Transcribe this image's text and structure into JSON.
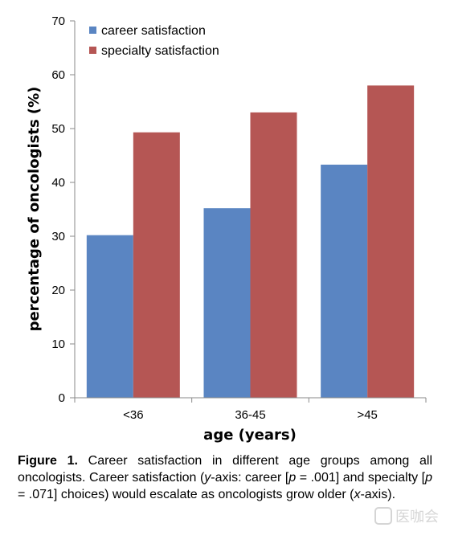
{
  "chart_data": {
    "type": "bar",
    "categories": [
      "<36",
      "36-45",
      ">45"
    ],
    "series": [
      {
        "name": "career satisfaction",
        "color": "#5a85c2",
        "values": [
          30.2,
          35.2,
          43.3
        ]
      },
      {
        "name": "specialty satisfaction",
        "color": "#b55654",
        "values": [
          49.3,
          53.0,
          58.0
        ]
      }
    ],
    "xlabel": "age (years)",
    "ylabel": "percentage of oncologists (%)",
    "ylim": [
      0,
      70
    ],
    "yticks": [
      0,
      10,
      20,
      30,
      40,
      50,
      60,
      70
    ],
    "grid": false,
    "legend_position": "top-left"
  },
  "caption": {
    "label": "Figure 1.",
    "part1": " Career satisfaction in different age groups among all oncologists. Career satisfaction (",
    "y_var": "y",
    "part2": "-axis: career [",
    "p1": "p",
    "part3": " = .001] and specialty [",
    "p2": "p",
    "part4": " = .071] choices) would escalate as oncologists grow older (",
    "x_var": "x",
    "part5": "-axis)."
  },
  "watermark": {
    "text": "医咖会"
  }
}
